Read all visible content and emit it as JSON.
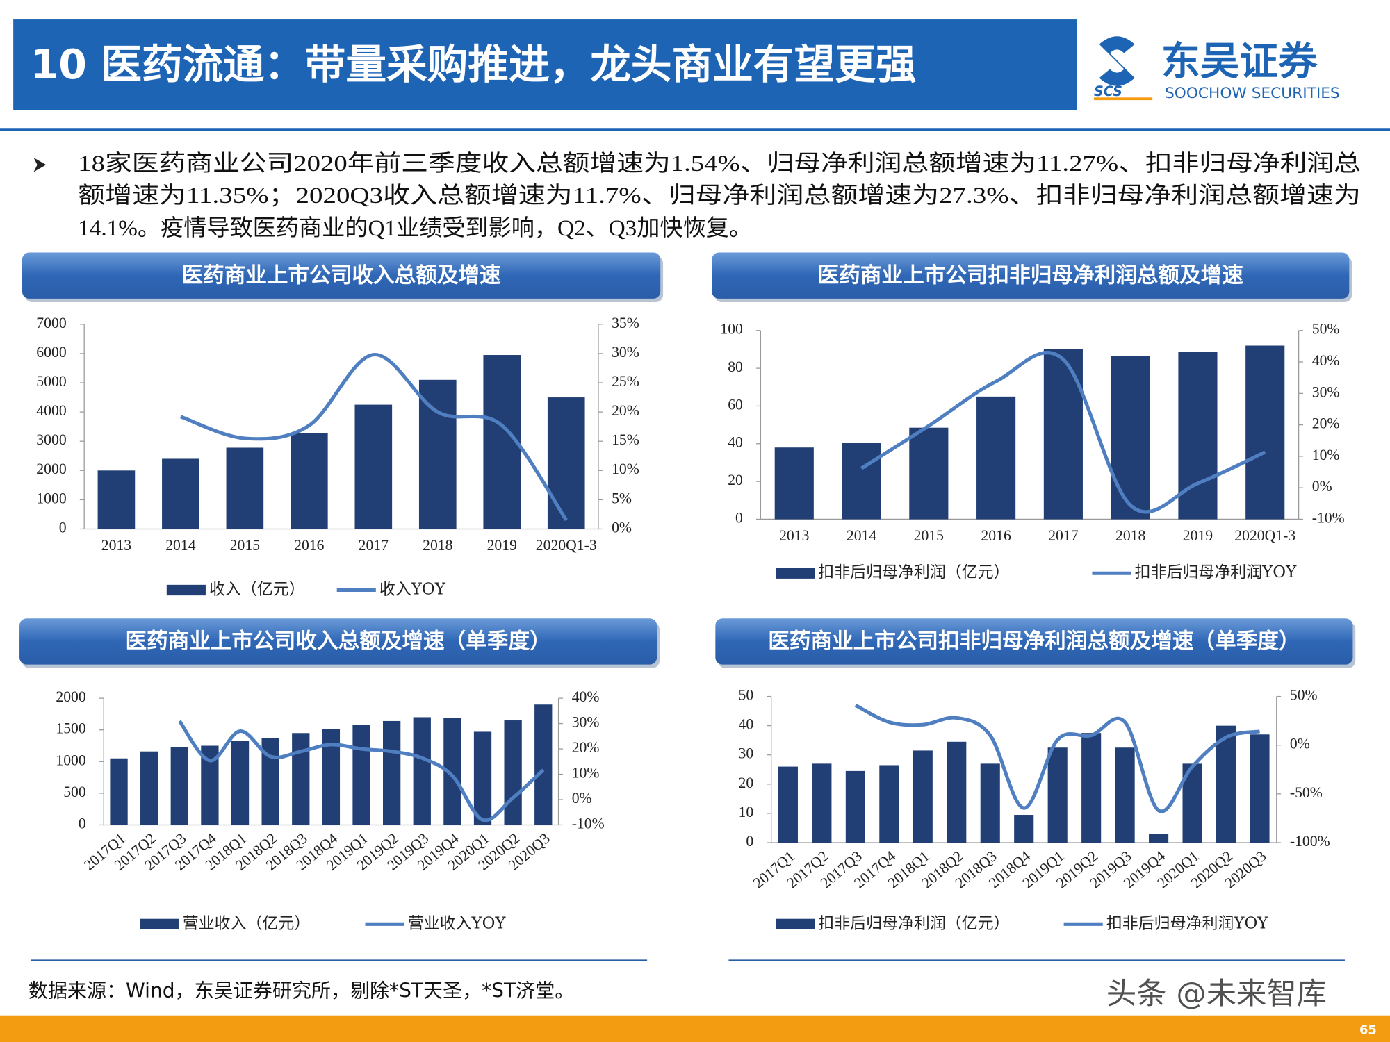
{
  "header": {
    "title": "10 医药流通：带量采购推进，龙头商业有望更强",
    "logo_cn": "东吴证券",
    "logo_en": "SOOCHOW SECURITIES",
    "logo_abbr": "SCS"
  },
  "bullet": [
    "18家医药商业公司2020年前三季度收入总额增速为1.54%、归母净利润总额增速为11.27%、扣非归母净利润总",
    "额增速为11.35%；2020Q3收入总额增速为11.7%、归母净利润总额增速为27.3%、扣非归母净利润总额增速为",
    "14.1%。疫情导致医药商业的Q1业绩受到影响，Q2、Q3加快恢复。"
  ],
  "chart_data": [
    {
      "type": "bar-line",
      "title": "医药商业上市公司收入总额及增速",
      "categories": [
        "2013",
        "2014",
        "2015",
        "2016",
        "2017",
        "2018",
        "2019",
        "2020Q1-3"
      ],
      "series": [
        {
          "name": "收入（亿元）",
          "color": "#213f75",
          "values": [
            2000,
            2400,
            2780,
            3270,
            4250,
            5100,
            5950,
            4500
          ]
        },
        {
          "name": "收入YOY",
          "color": "#4f7fc1",
          "axis": "y2",
          "values": [
            null,
            19.2,
            15.5,
            17.7,
            29.8,
            20,
            17.7,
            1.54
          ]
        }
      ],
      "ylim": [
        0,
        7000
      ],
      "yticks": [
        0,
        1000,
        2000,
        3000,
        4000,
        5000,
        6000,
        7000
      ],
      "y2lim": [
        0,
        35
      ],
      "y2ticks": [
        {
          "value": 0,
          "label": "0%"
        },
        {
          "value": 5,
          "label": "5%"
        },
        {
          "value": 10,
          "label": "10%"
        },
        {
          "value": 15,
          "label": "15%"
        },
        {
          "value": 20,
          "label": "20%"
        },
        {
          "value": 25,
          "label": "25%"
        },
        {
          "value": 30,
          "label": "30%"
        },
        {
          "value": 35,
          "label": "35%"
        }
      ]
    },
    {
      "type": "bar-line",
      "title": "医药商业上市公司扣非归母净利润总额及增速",
      "categories": [
        "2013",
        "2014",
        "2015",
        "2016",
        "2017",
        "2018",
        "2019",
        "2020Q1-3"
      ],
      "series": [
        {
          "name": "扣非后归母净利润（亿元）",
          "color": "#213f75",
          "values": [
            38,
            40.5,
            48.5,
            65,
            90,
            86.5,
            88.5,
            92
          ]
        },
        {
          "name": "扣非后归母净利润YOY",
          "color": "#4f7fc1",
          "axis": "y2",
          "values": [
            null,
            6.2,
            19.7,
            33.8,
            40.8,
            -5.6,
            1.4,
            11.35
          ]
        }
      ],
      "ylim": [
        0,
        100
      ],
      "yticks": [
        0,
        20,
        40,
        60,
        80,
        100
      ],
      "y2lim": [
        -10,
        50
      ],
      "y2ticks": [
        {
          "value": -10,
          "label": "-10%"
        },
        {
          "value": 0,
          "label": "0%"
        },
        {
          "value": 10,
          "label": "10%"
        },
        {
          "value": 20,
          "label": "20%"
        },
        {
          "value": 30,
          "label": "30%"
        },
        {
          "value": 40,
          "label": "40%"
        },
        {
          "value": 50,
          "label": "50%"
        }
      ]
    },
    {
      "type": "bar-line",
      "title": "医药商业上市公司收入总额及增速（单季度）",
      "categories": [
        "2017Q1",
        "2017Q2",
        "2017Q3",
        "2017Q4",
        "2018Q1",
        "2018Q2",
        "2018Q3",
        "2018Q4",
        "2019Q1",
        "2019Q2",
        "2019Q3",
        "2019Q4",
        "2020Q1",
        "2020Q2",
        "2020Q3"
      ],
      "series": [
        {
          "name": "营业收入（亿元）",
          "color": "#213f75",
          "values": [
            1050,
            1160,
            1230,
            1250,
            1330,
            1370,
            1450,
            1510,
            1580,
            1640,
            1700,
            1690,
            1470,
            1650,
            1900
          ]
        },
        {
          "name": "营业收入YOY",
          "color": "#4f7fc1",
          "axis": "y2",
          "values": [
            null,
            null,
            31,
            15.4,
            27,
            17,
            19,
            21.7,
            20,
            19,
            16.4,
            9.4,
            -8,
            0.7,
            11.7
          ]
        }
      ],
      "ylim": [
        0,
        2000
      ],
      "yticks": [
        0,
        500,
        1000,
        1500,
        2000
      ],
      "y2lim": [
        -10,
        40
      ],
      "y2ticks": [
        {
          "value": -10,
          "label": "-10%"
        },
        {
          "value": 0,
          "label": "0%"
        },
        {
          "value": 10,
          "label": "10%"
        },
        {
          "value": 20,
          "label": "20%"
        },
        {
          "value": 30,
          "label": "30%"
        },
        {
          "value": 40,
          "label": "40%"
        }
      ]
    },
    {
      "type": "bar-line",
      "title": "医药商业上市公司扣非归母净利润总额及增速（单季度）",
      "categories": [
        "2017Q1",
        "2017Q2",
        "2017Q3",
        "2017Q4",
        "2018Q1",
        "2018Q2",
        "2018Q3",
        "2018Q4",
        "2019Q1",
        "2019Q2",
        "2019Q3",
        "2019Q4",
        "2020Q1",
        "2020Q2",
        "2020Q3"
      ],
      "series": [
        {
          "name": "扣非后归母净利润（亿元）",
          "color": "#213f75",
          "values": [
            26,
            27,
            24.5,
            26.5,
            31.5,
            34.5,
            27,
            9.5,
            32.5,
            37.5,
            32.5,
            3,
            27,
            40,
            37
          ]
        },
        {
          "name": "扣非后归母净利润YOY",
          "color": "#4f7fc1",
          "axis": "y2",
          "values": [
            null,
            null,
            41,
            23.6,
            21,
            28,
            10,
            -64.5,
            5.5,
            10,
            23.6,
            -67,
            -22,
            8,
            14.1
          ]
        }
      ],
      "ylim": [
        0,
        50
      ],
      "yticks": [
        0,
        10,
        20,
        30,
        40,
        50
      ],
      "y2lim": [
        -100,
        50
      ],
      "y2ticks": [
        {
          "value": -100,
          "label": "-100%"
        },
        {
          "value": -50,
          "label": "-50%"
        },
        {
          "value": 0,
          "label": "0%"
        },
        {
          "value": 50,
          "label": "50%"
        }
      ]
    }
  ],
  "footer": {
    "source": "数据来源：Wind，东吴证券研究所，剔除*ST天圣，*ST济堂。",
    "watermark": "头条 @未来智库",
    "page_number": "65"
  }
}
